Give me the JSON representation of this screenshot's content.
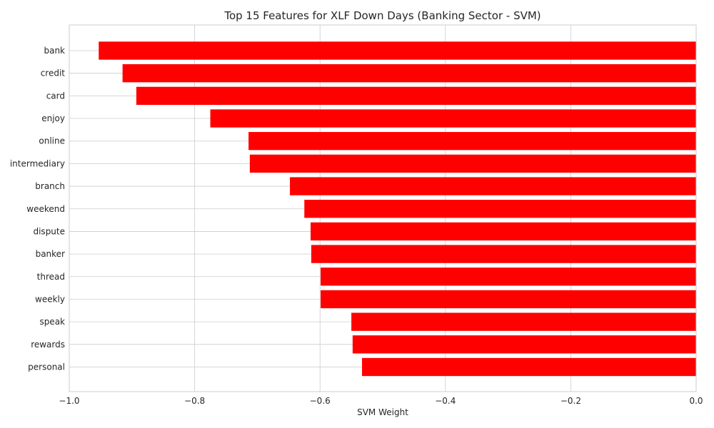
{
  "chart_data": {
    "type": "bar",
    "orientation": "horizontal",
    "title": "Top 15 Features for XLF Down Days (Banking Sector - SVM)",
    "xlabel": "SVM Weight",
    "ylabel": "",
    "xlim": [
      -1.0,
      0.0
    ],
    "x_ticks": [
      -1.0,
      -0.8,
      -0.6,
      -0.4,
      -0.2,
      0.0
    ],
    "x_tick_labels": [
      "−1.0",
      "−0.8",
      "−0.6",
      "−0.4",
      "−0.2",
      "0.0"
    ],
    "grid": true,
    "categories": [
      "bank",
      "credit",
      "card",
      "enjoy",
      "online",
      "intermediary",
      "branch",
      "weekend",
      "dispute",
      "banker",
      "thread",
      "weekly",
      "speak",
      "rewards",
      "personal"
    ],
    "values": [
      -0.953,
      -0.915,
      -0.893,
      -0.775,
      -0.714,
      -0.712,
      -0.648,
      -0.625,
      -0.615,
      -0.614,
      -0.599,
      -0.599,
      -0.55,
      -0.548,
      -0.533
    ],
    "bar_color": "#ff0000"
  }
}
